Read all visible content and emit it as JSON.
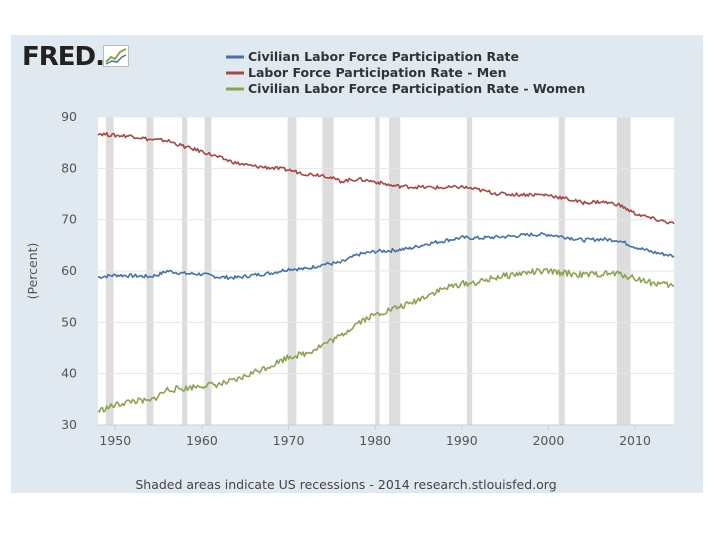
{
  "logo": {
    "text": "FRED",
    "dot": "."
  },
  "footer": "Shaded areas indicate US recessions - 2014 research.stlouisfed.org",
  "colors": {
    "total": "#4572a7",
    "men": "#aa4643",
    "women": "#89a54e",
    "recession": "#dddddd",
    "plot_bg": "#ffffff",
    "card_bg": "#e1e9f0"
  },
  "chart_data": {
    "type": "line",
    "ylabel": "(Percent)",
    "xlim": [
      1948,
      2014.5
    ],
    "ylim": [
      30,
      90
    ],
    "xticks": [
      1950,
      1960,
      1970,
      1980,
      1990,
      2000,
      2010
    ],
    "yticks": [
      30,
      40,
      50,
      60,
      70,
      80,
      90
    ],
    "grid": "horizontal",
    "legend": "top",
    "recessions": [
      [
        1948.9,
        1949.8
      ],
      [
        1953.6,
        1954.4
      ],
      [
        1957.7,
        1958.3
      ],
      [
        1960.3,
        1961.1
      ],
      [
        1969.9,
        1970.9
      ],
      [
        1973.9,
        1975.2
      ],
      [
        1980.0,
        1980.5
      ],
      [
        1981.6,
        1982.9
      ],
      [
        1990.6,
        1991.2
      ],
      [
        2001.2,
        2001.9
      ],
      [
        2007.9,
        2009.5
      ]
    ],
    "series": [
      {
        "name": "Civilian Labor Force Participation Rate",
        "key": "total",
        "x": [
          1948,
          1950,
          1953,
          1954,
          1955,
          1956,
          1958,
          1960,
          1962,
          1964,
          1966,
          1968,
          1970,
          1972,
          1974,
          1976,
          1978,
          1980,
          1982,
          1984,
          1986,
          1988,
          1990,
          1992,
          1994,
          1996,
          1998,
          2000,
          2002,
          2004,
          2006,
          2008,
          2010,
          2012,
          2014.5
        ],
        "values": [
          58.8,
          59.2,
          59.0,
          58.9,
          59.3,
          60.0,
          59.5,
          59.4,
          58.8,
          58.7,
          59.2,
          59.6,
          60.4,
          60.4,
          61.3,
          61.6,
          63.2,
          63.8,
          64.0,
          64.4,
          65.3,
          65.9,
          66.5,
          66.4,
          66.6,
          66.8,
          67.1,
          67.1,
          66.6,
          66.0,
          66.2,
          66.0,
          64.7,
          63.7,
          62.9
        ]
      },
      {
        "name": "Labor Force Participation Rate - Men",
        "key": "men",
        "x": [
          1948,
          1950,
          1952,
          1954,
          1956,
          1958,
          1960,
          1962,
          1964,
          1966,
          1968,
          1970,
          1972,
          1974,
          1976,
          1978,
          1980,
          1982,
          1984,
          1986,
          1988,
          1990,
          1992,
          1994,
          1996,
          1998,
          2000,
          2002,
          2004,
          2006,
          2008,
          2010,
          2012,
          2014.5
        ],
        "values": [
          86.8,
          86.4,
          86.3,
          85.6,
          85.4,
          84.2,
          83.3,
          82.1,
          81.0,
          80.4,
          80.1,
          79.7,
          78.9,
          78.7,
          77.5,
          77.9,
          77.4,
          76.6,
          76.4,
          76.3,
          76.2,
          76.4,
          75.8,
          75.1,
          74.9,
          74.9,
          74.8,
          74.1,
          73.3,
          73.5,
          73.0,
          71.2,
          70.2,
          69.2
        ]
      },
      {
        "name": "Civilian Labor Force Participation Rate - Women",
        "key": "women",
        "x": [
          1948,
          1950,
          1952,
          1954,
          1956,
          1958,
          1960,
          1962,
          1964,
          1966,
          1968,
          1970,
          1972,
          1974,
          1976,
          1978,
          1980,
          1982,
          1984,
          1986,
          1988,
          1990,
          1992,
          1994,
          1996,
          1998,
          2000,
          2002,
          2004,
          2006,
          2008,
          2010,
          2012,
          2014.5
        ],
        "values": [
          32.7,
          33.9,
          34.7,
          34.6,
          36.9,
          37.1,
          37.7,
          37.9,
          38.7,
          40.3,
          41.6,
          43.3,
          43.9,
          45.7,
          47.3,
          50.0,
          51.5,
          52.6,
          53.6,
          55.3,
          56.6,
          57.5,
          57.8,
          58.8,
          59.3,
          59.8,
          59.9,
          59.6,
          59.2,
          59.4,
          59.5,
          58.6,
          57.7,
          57.1
        ]
      }
    ]
  }
}
